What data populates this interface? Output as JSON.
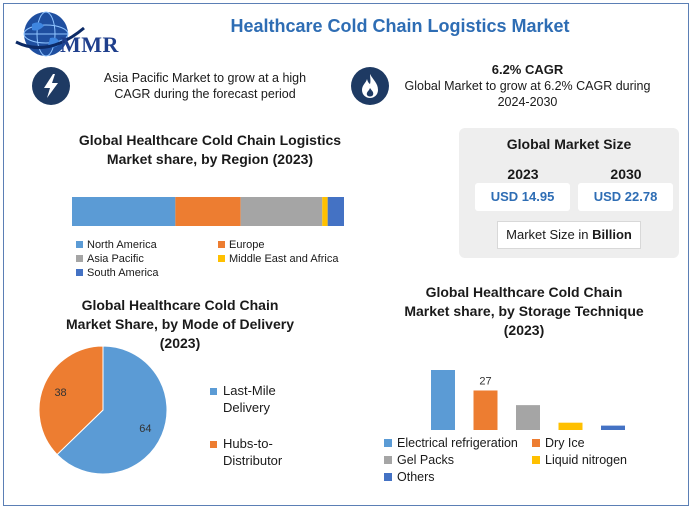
{
  "header": {
    "logo_text": "MMR",
    "title": "Healthcare Cold Chain Logistics Market",
    "asia_note": "Asia Pacific Market to grow at a high CAGR during the forecast period",
    "cagr_title": "6.2% CAGR",
    "cagr_note": "Global Market to grow at 6.2% CAGR during 2024-2030",
    "icons": [
      "lightning-bolt-icon",
      "flame-icon",
      "globe-icon"
    ]
  },
  "market_size": {
    "title": "Global Market Size",
    "years": [
      "2023",
      "2030"
    ],
    "values": [
      "USD 14.95",
      "USD 22.78"
    ],
    "unit_prefix": "Market Size in ",
    "unit_bold": "Billion"
  },
  "chart_data": [
    {
      "type": "bar",
      "orientation": "horizontal-stacked-100",
      "title": "Global Healthcare Cold Chain Logistics Market share, by Region (2023)",
      "categories": [
        "North America",
        "Europe",
        "Asia Pacific",
        "Middle East and Africa",
        "South America"
      ],
      "values": [
        38,
        24,
        30,
        2,
        6
      ],
      "colors": [
        "#5b9bd5",
        "#ed7d31",
        "#a5a5a5",
        "#ffc000",
        "#4472c4"
      ],
      "legend_placement": "bottom",
      "grid": false
    },
    {
      "type": "pie",
      "title": "Global Healthcare Cold Chain Market Share, by Mode of Delivery (2023)",
      "categories": [
        "Last-Mile Delivery",
        "Hubs-to-Distributor"
      ],
      "values": [
        64,
        38
      ],
      "colors": [
        "#5b9bd5",
        "#ed7d31"
      ],
      "legend_placement": "right"
    },
    {
      "type": "bar",
      "title": "Global Healthcare Cold Chain Market share, by Storage Technique (2023)",
      "categories": [
        "Electrical refrigeration",
        "Dry Ice",
        "Gel Packs",
        "Liquid nitrogen",
        "Others"
      ],
      "values": [
        41,
        27,
        17,
        5,
        3
      ],
      "data_labels": [
        null,
        "27",
        null,
        null,
        null
      ],
      "colors": [
        "#5b9bd5",
        "#ed7d31",
        "#a5a5a5",
        "#ffc000",
        "#4472c4"
      ],
      "legend_placement": "bottom",
      "grid": false
    }
  ]
}
